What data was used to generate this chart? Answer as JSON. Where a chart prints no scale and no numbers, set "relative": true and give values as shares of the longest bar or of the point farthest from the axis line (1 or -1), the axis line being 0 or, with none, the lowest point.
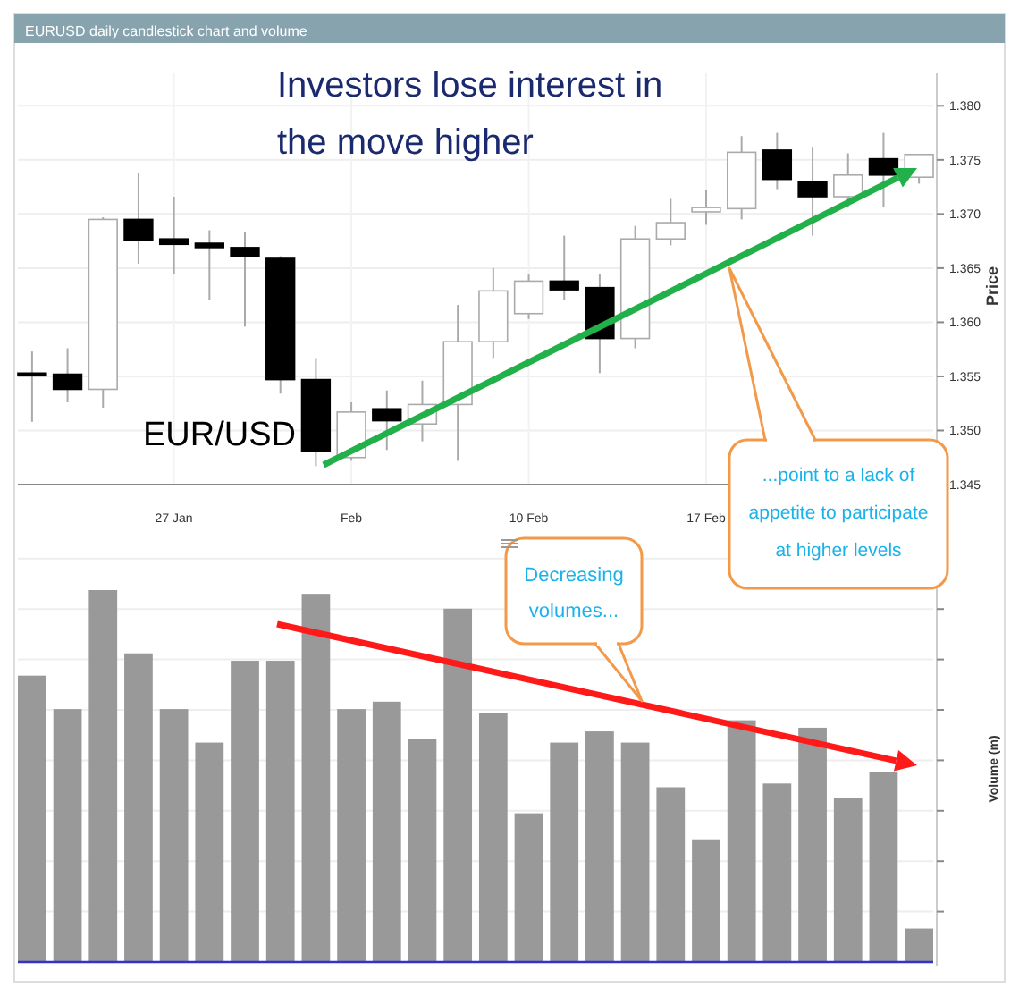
{
  "chart_data": [
    {
      "type": "candlestick",
      "title": "EURUSD daily candlestick chart and volume",
      "ylabel": "Price",
      "categories": [
        null,
        null,
        null,
        null,
        "27 Jan",
        null,
        null,
        null,
        null,
        "Feb",
        null,
        null,
        null,
        null,
        "10 Feb",
        null,
        null,
        null,
        null,
        "17 Feb",
        null,
        null,
        null,
        null,
        null,
        null
      ],
      "ohlc": [
        [
          1.3553,
          1.3573,
          1.3508,
          1.3552
        ],
        [
          1.3552,
          1.3576,
          1.3526,
          1.3538
        ],
        [
          1.3538,
          1.3697,
          1.3521,
          1.3695
        ],
        [
          1.3695,
          1.3738,
          1.3654,
          1.3676
        ],
        [
          1.3677,
          1.3716,
          1.3645,
          1.3672
        ],
        [
          1.3673,
          1.3685,
          1.3621,
          1.3669
        ],
        [
          1.3669,
          1.3683,
          1.3596,
          1.3661
        ],
        [
          1.3659,
          1.3661,
          1.3534,
          1.3547
        ],
        [
          1.3547,
          1.3567,
          1.3467,
          1.3481
        ],
        [
          1.3475,
          1.3526,
          1.3472,
          1.3517
        ],
        [
          1.352,
          1.3537,
          1.3482,
          1.3509
        ],
        [
          1.3506,
          1.3546,
          1.349,
          1.3524
        ],
        [
          1.3524,
          1.3616,
          1.3472,
          1.3582
        ],
        [
          1.3582,
          1.365,
          1.3567,
          1.3629
        ],
        [
          1.3608,
          1.3644,
          1.3603,
          1.3638
        ],
        [
          1.3638,
          1.368,
          1.3621,
          1.363
        ],
        [
          1.3632,
          1.3645,
          1.3553,
          1.3585
        ],
        [
          1.3585,
          1.3689,
          1.3576,
          1.3677
        ],
        [
          1.3677,
          1.3714,
          1.3671,
          1.3692
        ],
        [
          1.3702,
          1.3722,
          1.369,
          1.3706
        ],
        [
          1.3705,
          1.3772,
          1.3695,
          1.3757
        ],
        [
          1.3759,
          1.3775,
          1.3723,
          1.3732
        ],
        [
          1.373,
          1.3762,
          1.368,
          1.3716
        ],
        [
          1.3716,
          1.3756,
          1.3706,
          1.3736
        ],
        [
          1.3751,
          1.3775,
          1.3706,
          1.3736
        ],
        [
          1.3734,
          1.3755,
          1.3728,
          1.3755
        ]
      ],
      "ylim": [
        1.345,
        1.383
      ],
      "yticks": [
        1.345,
        {
          "value": 1.35,
          "label": "1.350"
        },
        1.355,
        {
          "value": 1.36,
          "label": "1.360"
        },
        1.365,
        {
          "value": 1.37,
          "label": "1.370"
        },
        1.375,
        {
          "value": 1.38,
          "label": "1.380"
        }
      ],
      "grid": true,
      "annotations": [
        "Investors lose interest in the move higher",
        "EUR/USD",
        "...point to a lack of appetite to participate at higher levels"
      ]
    },
    {
      "type": "bar",
      "relative": true,
      "ylabel": "Volume (m)",
      "color": "#999999",
      "grid": true,
      "categories": [
        null,
        null,
        null,
        null,
        null,
        null,
        null,
        null,
        null,
        null,
        null,
        null,
        null,
        null,
        null,
        null,
        null,
        null,
        null,
        null,
        null,
        null,
        null,
        null,
        null,
        null
      ],
      "values": [
        0.77,
        0.68,
        1,
        0.83,
        0.68,
        0.59,
        0.81,
        0.81,
        0.99,
        0.68,
        0.7,
        0.6,
        0.95,
        0.67,
        0.4,
        0.59,
        0.62,
        0.59,
        0.47,
        0.33,
        0.65,
        0.48,
        0.63,
        0.44,
        0.51,
        0.09
      ],
      "annotations": [
        "Decreasing volumes..."
      ]
    }
  ]
}
